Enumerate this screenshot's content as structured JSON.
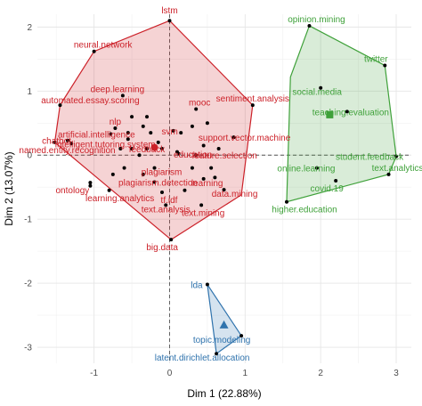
{
  "chart_data": {
    "type": "scatter",
    "title": "",
    "xlabel": "Dim 1 (22.88%)",
    "ylabel": "Dim 2 (13.07%)",
    "xlim": [
      -1.75,
      3.2
    ],
    "ylim": [
      -3.25,
      2.2
    ],
    "x_ticks": [
      -1,
      0,
      1,
      2,
      3
    ],
    "y_ticks": [
      -3,
      -2,
      -1,
      0,
      1,
      2
    ],
    "grid": true,
    "legend": "none",
    "reference_lines": {
      "x": 0,
      "y": 0
    },
    "colors": {
      "cluster1": "#cc2129",
      "cluster2": "#3fa13a",
      "cluster3": "#2f73ad"
    },
    "clusters": [
      {
        "id": "cluster1",
        "hull": [
          [
            0.0,
            2.1
          ],
          [
            -1.0,
            1.62
          ],
          [
            -1.45,
            0.78
          ],
          [
            -1.52,
            0.2
          ],
          [
            0.02,
            -1.32
          ],
          [
            0.95,
            -0.62
          ],
          [
            1.1,
            0.78
          ],
          [
            0.0,
            2.1
          ]
        ],
        "centroid": [
          -0.2,
          0.12
        ],
        "points": [
          {
            "label": "lstm",
            "x": 0.0,
            "y": 2.1
          },
          {
            "label": "neural.network",
            "x": -1.0,
            "y": 1.62
          },
          {
            "label": "deep.learning",
            "x": -0.62,
            "y": 0.93
          },
          {
            "label": "automated.essay.scoring",
            "x": -1.45,
            "y": 0.78
          },
          {
            "label": "nlp",
            "x": -0.72,
            "y": 0.42
          },
          {
            "label": "artificial.intelligence",
            "x": -0.78,
            "y": 0.33
          },
          {
            "label": "chatbot",
            "x": -1.35,
            "y": 0.23
          },
          {
            "label": "intelligent.tutoring.system",
            "x": -1.3,
            "y": 0.18
          },
          {
            "label": "feedback",
            "x": -0.3,
            "y": 0.1
          },
          {
            "label": "named.entity.recognition",
            "x": -1.52,
            "y": 0.2
          },
          {
            "label": "ontology",
            "x": -1.05,
            "y": -0.43
          },
          {
            "label": "learning.analytics",
            "x": -0.8,
            "y": -0.55
          },
          {
            "label": "plagiarism",
            "x": -0.2,
            "y": -0.2
          },
          {
            "label": "plagiarism.detection",
            "x": -0.2,
            "y": -0.42
          },
          {
            "label": "tf.idf",
            "x": -0.1,
            "y": -0.58
          },
          {
            "label": "text.analysis",
            "x": -0.05,
            "y": -0.78
          },
          {
            "label": "big.data",
            "x": 0.02,
            "y": -1.32
          },
          {
            "label": "mooc",
            "x": 0.35,
            "y": 0.72
          },
          {
            "label": "svm",
            "x": 0.05,
            "y": 0.38
          },
          {
            "label": "sentiment.analysis",
            "x": 1.1,
            "y": 0.78
          },
          {
            "label": "support.vector.machine",
            "x": 0.85,
            "y": 0.28
          },
          {
            "label": "feature.selection",
            "x": 0.35,
            "y": 0.0
          },
          {
            "label": "education",
            "x": 0.12,
            "y": 0.02
          },
          {
            "label": "learning",
            "x": 0.45,
            "y": -0.37
          },
          {
            "label": "data.mining",
            "x": 0.72,
            "y": -0.54
          },
          {
            "label": "text.mining",
            "x": 0.42,
            "y": -0.78
          }
        ]
      },
      {
        "id": "cluster2",
        "hull": [
          [
            1.85,
            2.02
          ],
          [
            2.85,
            1.4
          ],
          [
            3.0,
            -0.02
          ],
          [
            2.9,
            -0.3
          ],
          [
            1.55,
            -0.73
          ],
          [
            1.6,
            1.22
          ],
          [
            1.85,
            2.02
          ]
        ],
        "centroid": [
          2.12,
          0.63
        ],
        "points": [
          {
            "label": "opinion.mining",
            "x": 1.85,
            "y": 2.02
          },
          {
            "label": "twitter",
            "x": 2.85,
            "y": 1.4
          },
          {
            "label": "social.media",
            "x": 2.0,
            "y": 1.05
          },
          {
            "label": "teaching.evaluation",
            "x": 2.35,
            "y": 0.68
          },
          {
            "label": "student.feedback",
            "x": 3.0,
            "y": -0.02
          },
          {
            "label": "online.learning",
            "x": 1.95,
            "y": -0.2
          },
          {
            "label": "text.analytics",
            "x": 2.9,
            "y": -0.3
          },
          {
            "label": "covid.19",
            "x": 2.2,
            "y": -0.4
          },
          {
            "label": "higher.education",
            "x": 1.55,
            "y": -0.73
          }
        ]
      },
      {
        "id": "cluster3",
        "hull": [
          [
            0.5,
            -2.02
          ],
          [
            0.95,
            -2.82
          ],
          [
            0.62,
            -3.1
          ],
          [
            0.5,
            -2.02
          ]
        ],
        "centroid": [
          0.72,
          -2.65
        ],
        "points": [
          {
            "label": "lda",
            "x": 0.5,
            "y": -2.02
          },
          {
            "label": "topic.modeling",
            "x": 0.95,
            "y": -2.82
          },
          {
            "label": "latent.dirichlet.allocation",
            "x": 0.62,
            "y": -3.1
          }
        ]
      }
    ],
    "unlabeled_points": [
      [
        -0.5,
        0.6
      ],
      [
        -0.3,
        0.6
      ],
      [
        -0.55,
        0.35
      ],
      [
        -0.35,
        0.45
      ],
      [
        -0.25,
        0.35
      ],
      [
        -0.55,
        0.25
      ],
      [
        -0.5,
        0.1
      ],
      [
        -0.4,
        0.0
      ],
      [
        -0.15,
        0.2
      ],
      [
        -0.1,
        0.1
      ],
      [
        0.1,
        0.05
      ],
      [
        0.15,
        0.35
      ],
      [
        0.3,
        0.45
      ],
      [
        0.5,
        0.5
      ],
      [
        0.45,
        0.15
      ],
      [
        0.65,
        0.1
      ],
      [
        0.55,
        -0.2
      ],
      [
        0.3,
        -0.2
      ],
      [
        -0.6,
        -0.2
      ],
      [
        -0.75,
        -0.3
      ],
      [
        -0.35,
        -0.3
      ],
      [
        0.2,
        -0.55
      ],
      [
        0.6,
        -0.35
      ],
      [
        -1.05,
        -0.48
      ],
      [
        -0.65,
        0.1
      ]
    ]
  }
}
